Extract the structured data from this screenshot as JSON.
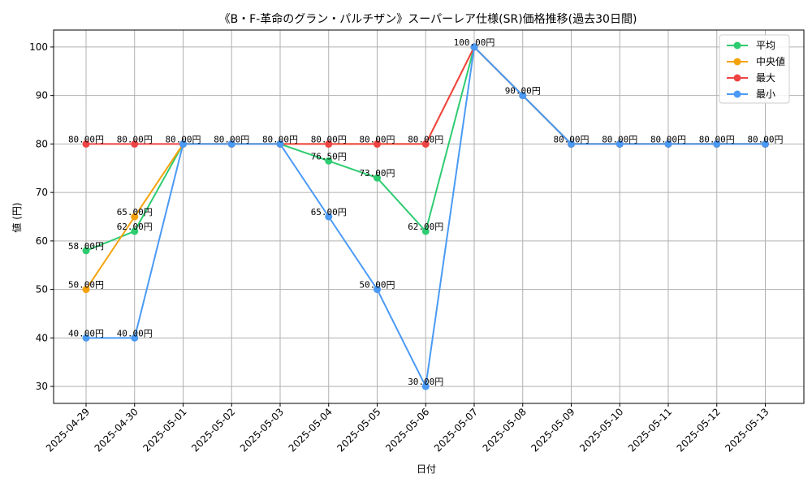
{
  "chart_data": {
    "type": "line",
    "title": "《B・F-革命のグラン・パルチザン》スーパーレア仕様(SR)価格推移(過去30日間)",
    "xlabel": "日付",
    "ylabel": "値 (円)",
    "categories": [
      "2025-04-29",
      "2025-04-30",
      "2025-05-01",
      "2025-05-02",
      "2025-05-03",
      "2025-05-04",
      "2025-05-05",
      "2025-05-06",
      "2025-05-07",
      "2025-05-08",
      "2025-05-09",
      "2025-05-10",
      "2025-05-11",
      "2025-05-12",
      "2025-05-13"
    ],
    "ylim": [
      26.5,
      103.5
    ],
    "yticks": [
      30,
      40,
      50,
      60,
      70,
      80,
      90,
      100
    ],
    "grid": true,
    "legend_position": "top-right",
    "series": [
      {
        "name": "平均",
        "color": "#2ecc71",
        "values": [
          58,
          62,
          80,
          80,
          80,
          76.5,
          73,
          62,
          100,
          90,
          80,
          80,
          80,
          80,
          80
        ]
      },
      {
        "name": "中央値",
        "color": "#f5a20a",
        "values": [
          50,
          65,
          80,
          80,
          80,
          80,
          80,
          80,
          100,
          90,
          80,
          80,
          80,
          80,
          80
        ]
      },
      {
        "name": "最大",
        "color": "#ef4444",
        "values": [
          80,
          80,
          80,
          80,
          80,
          80,
          80,
          80,
          100,
          90,
          80,
          80,
          80,
          80,
          80
        ]
      },
      {
        "name": "最小",
        "color": "#4a9af5",
        "values": [
          40,
          40,
          80,
          80,
          80,
          65,
          50,
          30,
          100,
          90,
          80,
          80,
          80,
          80,
          80
        ]
      }
    ],
    "annotations": [
      {
        "x": 0,
        "y": 80,
        "text": "80.00円"
      },
      {
        "x": 0,
        "y": 58,
        "text": "58.00円"
      },
      {
        "x": 0,
        "y": 50,
        "text": "50.00円"
      },
      {
        "x": 0,
        "y": 40,
        "text": "40.00円"
      },
      {
        "x": 1,
        "y": 80,
        "text": "80.00円"
      },
      {
        "x": 1,
        "y": 65,
        "text": "65.00円"
      },
      {
        "x": 1,
        "y": 62,
        "text": "62.00円"
      },
      {
        "x": 1,
        "y": 40,
        "text": "40.00円"
      },
      {
        "x": 2,
        "y": 80,
        "text": "80.00円"
      },
      {
        "x": 3,
        "y": 80,
        "text": "80.00円"
      },
      {
        "x": 4,
        "y": 80,
        "text": "80.00円"
      },
      {
        "x": 5,
        "y": 80,
        "text": "80.00円"
      },
      {
        "x": 5,
        "y": 76.5,
        "text": "76.50円"
      },
      {
        "x": 5,
        "y": 65,
        "text": "65.00円"
      },
      {
        "x": 6,
        "y": 80,
        "text": "80.00円"
      },
      {
        "x": 6,
        "y": 73,
        "text": "73.00円"
      },
      {
        "x": 6,
        "y": 50,
        "text": "50.00円"
      },
      {
        "x": 7,
        "y": 80,
        "text": "80.00円"
      },
      {
        "x": 7,
        "y": 62,
        "text": "62.00円"
      },
      {
        "x": 7,
        "y": 30,
        "text": "30.00円"
      },
      {
        "x": 8,
        "y": 100,
        "text": "100.00円"
      },
      {
        "x": 9,
        "y": 90,
        "text": "90.00円"
      },
      {
        "x": 10,
        "y": 80,
        "text": "80.00円"
      },
      {
        "x": 11,
        "y": 80,
        "text": "80.00円"
      },
      {
        "x": 12,
        "y": 80,
        "text": "80.00円"
      },
      {
        "x": 13,
        "y": 80,
        "text": "80.00円"
      },
      {
        "x": 14,
        "y": 80,
        "text": "80.00円"
      }
    ]
  }
}
